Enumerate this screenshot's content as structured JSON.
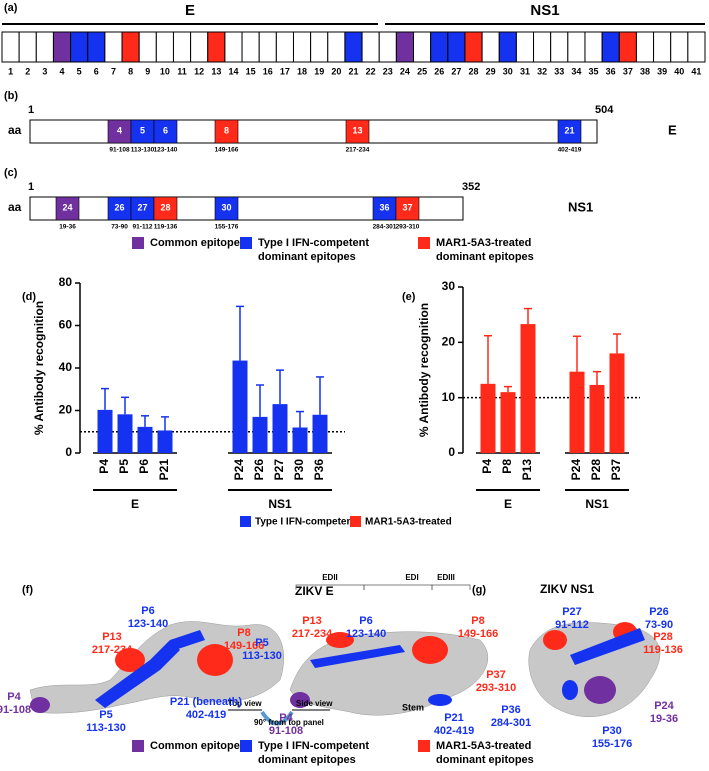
{
  "panel_a": {
    "label": "(a)",
    "groups": [
      "E",
      "NS1"
    ],
    "numbers": [
      1,
      2,
      3,
      4,
      5,
      6,
      7,
      8,
      9,
      10,
      11,
      12,
      13,
      14,
      15,
      16,
      17,
      18,
      19,
      20,
      21,
      22,
      23,
      24,
      25,
      26,
      27,
      28,
      29,
      30,
      31,
      32,
      33,
      34,
      35,
      36,
      37,
      38,
      39,
      40,
      41
    ],
    "box_colors": [
      "#fff",
      "#fff",
      "#fff",
      "#7030a0",
      "#1432f0",
      "#1432f0",
      "#fff",
      "#ff2a1a",
      "#fff",
      "#fff",
      "#fff",
      "#fff",
      "#ff2a1a",
      "#fff",
      "#fff",
      "#fff",
      "#fff",
      "#fff",
      "#fff",
      "#fff",
      "#1432f0",
      "#fff",
      "#fff",
      "#7030a0",
      "#fff",
      "#1432f0",
      "#1432f0",
      "#ff2a1a",
      "#fff",
      "#1432f0",
      "#fff",
      "#fff",
      "#fff",
      "#fff",
      "#fff",
      "#1432f0",
      "#ff2a1a",
      "#fff",
      "#fff",
      "#fff",
      "#fff"
    ]
  },
  "panel_b": {
    "label": "(b)",
    "prefix": "aa",
    "start": "1",
    "end": "504",
    "protein": "E",
    "epitopes": [
      {
        "id": "4",
        "range": "91-108",
        "color": "#7030a0"
      },
      {
        "id": "5",
        "range": "113-130",
        "color": "#1432f0"
      },
      {
        "id": "6",
        "range": "123-140",
        "color": "#1432f0"
      },
      {
        "id": "8",
        "range": "149-166",
        "color": "#ff2a1a"
      },
      {
        "id": "13",
        "range": "217-234",
        "color": "#ff2a1a"
      },
      {
        "id": "21",
        "range": "402-419",
        "color": "#1432f0"
      }
    ]
  },
  "panel_c": {
    "label": "(c)",
    "prefix": "aa",
    "start": "1",
    "end": "352",
    "protein": "NS1",
    "epitopes": [
      {
        "id": "24",
        "range": "19-36",
        "color": "#7030a0"
      },
      {
        "id": "26",
        "range": "73-90",
        "color": "#1432f0"
      },
      {
        "id": "27",
        "range": "91-112",
        "color": "#1432f0"
      },
      {
        "id": "28",
        "range": "119-136",
        "color": "#ff2a1a"
      },
      {
        "id": "30",
        "range": "155-176",
        "color": "#1432f0"
      },
      {
        "id": "36",
        "range": "284-301",
        "color": "#1432f0"
      },
      {
        "id": "37",
        "range": "293-310",
        "color": "#ff2a1a"
      }
    ]
  },
  "legend_top": [
    {
      "lines": [
        "Common epitopes"
      ],
      "color": "#7030a0"
    },
    {
      "lines": [
        "Type I IFN-competent",
        "dominant epitopes"
      ],
      "color": "#1432f0"
    },
    {
      "lines": [
        "MAR1-5A3-treated",
        "dominant epitopes"
      ],
      "color": "#ff2a1a"
    }
  ],
  "chart_data": [
    {
      "type": "bar",
      "label": "(d)",
      "ylabel": "% Antibody recognition",
      "color": "#1432f0",
      "ylim": [
        0,
        80
      ],
      "yticks": [
        0,
        20,
        40,
        60,
        80
      ],
      "hline": 10,
      "groups": [
        {
          "name": "E",
          "categories": [
            "P4",
            "P5",
            "P6",
            "P21"
          ],
          "values": [
            20.3,
            18.2,
            12.3,
            10.6
          ],
          "errors": [
            10,
            8,
            5.2,
            6.4
          ]
        },
        {
          "name": "NS1",
          "categories": [
            "P24",
            "P26",
            "P27",
            "P30",
            "P36"
          ],
          "values": [
            43.5,
            17,
            23,
            12,
            18
          ],
          "errors": [
            25.5,
            15,
            16,
            7.5,
            17.8
          ]
        }
      ]
    },
    {
      "type": "bar",
      "label": "(e)",
      "ylabel": "% Antibody recognition",
      "color": "#ff2a1a",
      "ylim": [
        0,
        30
      ],
      "yticks": [
        0,
        10,
        20,
        30
      ],
      "hline": 10,
      "groups": [
        {
          "name": "E",
          "categories": [
            "P4",
            "P8",
            "P13"
          ],
          "values": [
            12.5,
            11,
            23.3
          ],
          "errors": [
            8.7,
            1,
            2.8
          ]
        },
        {
          "name": "NS1",
          "categories": [
            "P24",
            "P28",
            "P37"
          ],
          "values": [
            14.7,
            12.3,
            18
          ],
          "errors": [
            6.4,
            2.4,
            3.5
          ]
        }
      ]
    }
  ],
  "chart_legend": [
    {
      "name": "Type I IFN-competent",
      "color": "#1432f0"
    },
    {
      "name": "MAR1-5A3-treated",
      "color": "#ff2a1a"
    }
  ],
  "panel_f": {
    "label": "(f)",
    "title": "ZIKV E",
    "domains": [
      "EDII",
      "EDI",
      "EDIII"
    ],
    "stem": "Stem",
    "top_view": "Top view",
    "side_view": "Side view",
    "rotation": "90° from top panel",
    "labels": [
      {
        "lines": [
          "P6",
          "123-140"
        ],
        "color": "#1432f0"
      },
      {
        "lines": [
          "P13",
          "217-234"
        ],
        "color": "#ff2a1a"
      },
      {
        "lines": [
          "P8",
          "149-166"
        ],
        "color": "#ff2a1a"
      },
      {
        "lines": [
          "P4",
          "91-108"
        ],
        "color": "#7030a0"
      },
      {
        "lines": [
          "P5",
          "113-130"
        ],
        "color": "#1432f0"
      },
      {
        "lines": [
          "P21 (beneath)",
          "402-419"
        ],
        "color": "#1432f0"
      },
      {
        "lines": [
          "P13",
          "217-234"
        ],
        "color": "#ff2a1a"
      },
      {
        "lines": [
          "P6",
          "123-140"
        ],
        "color": "#1432f0"
      },
      {
        "lines": [
          "P5",
          "113-130"
        ],
        "color": "#1432f0"
      },
      {
        "lines": [
          "P8",
          "149-166"
        ],
        "color": "#ff2a1a"
      },
      {
        "lines": [
          "P4",
          "91-108"
        ],
        "color": "#7030a0"
      },
      {
        "lines": [
          "P21",
          "402-419"
        ],
        "color": "#1432f0"
      }
    ]
  },
  "panel_g": {
    "label": "(g)",
    "title": "ZIKV NS1",
    "labels": [
      {
        "lines": [
          "P27",
          "91-112"
        ],
        "color": "#1432f0"
      },
      {
        "lines": [
          "P26",
          "73-90"
        ],
        "color": "#1432f0"
      },
      {
        "lines": [
          "P28",
          "119-136"
        ],
        "color": "#ff2a1a"
      },
      {
        "lines": [
          "P37",
          "293-310"
        ],
        "color": "#ff2a1a"
      },
      {
        "lines": [
          "P36",
          "284-301"
        ],
        "color": "#1432f0"
      },
      {
        "lines": [
          "P24",
          "19-36"
        ],
        "color": "#7030a0"
      },
      {
        "lines": [
          "P30",
          "155-176"
        ],
        "color": "#1432f0"
      }
    ]
  },
  "legend_bottom": [
    {
      "lines": [
        "Common epitopes"
      ],
      "color": "#7030a0"
    },
    {
      "lines": [
        "Type I IFN-competent",
        "dominant epitopes"
      ],
      "color": "#1432f0"
    },
    {
      "lines": [
        "MAR1-5A3-treated",
        "dominant epitopes"
      ],
      "color": "#ff2a1a"
    }
  ]
}
